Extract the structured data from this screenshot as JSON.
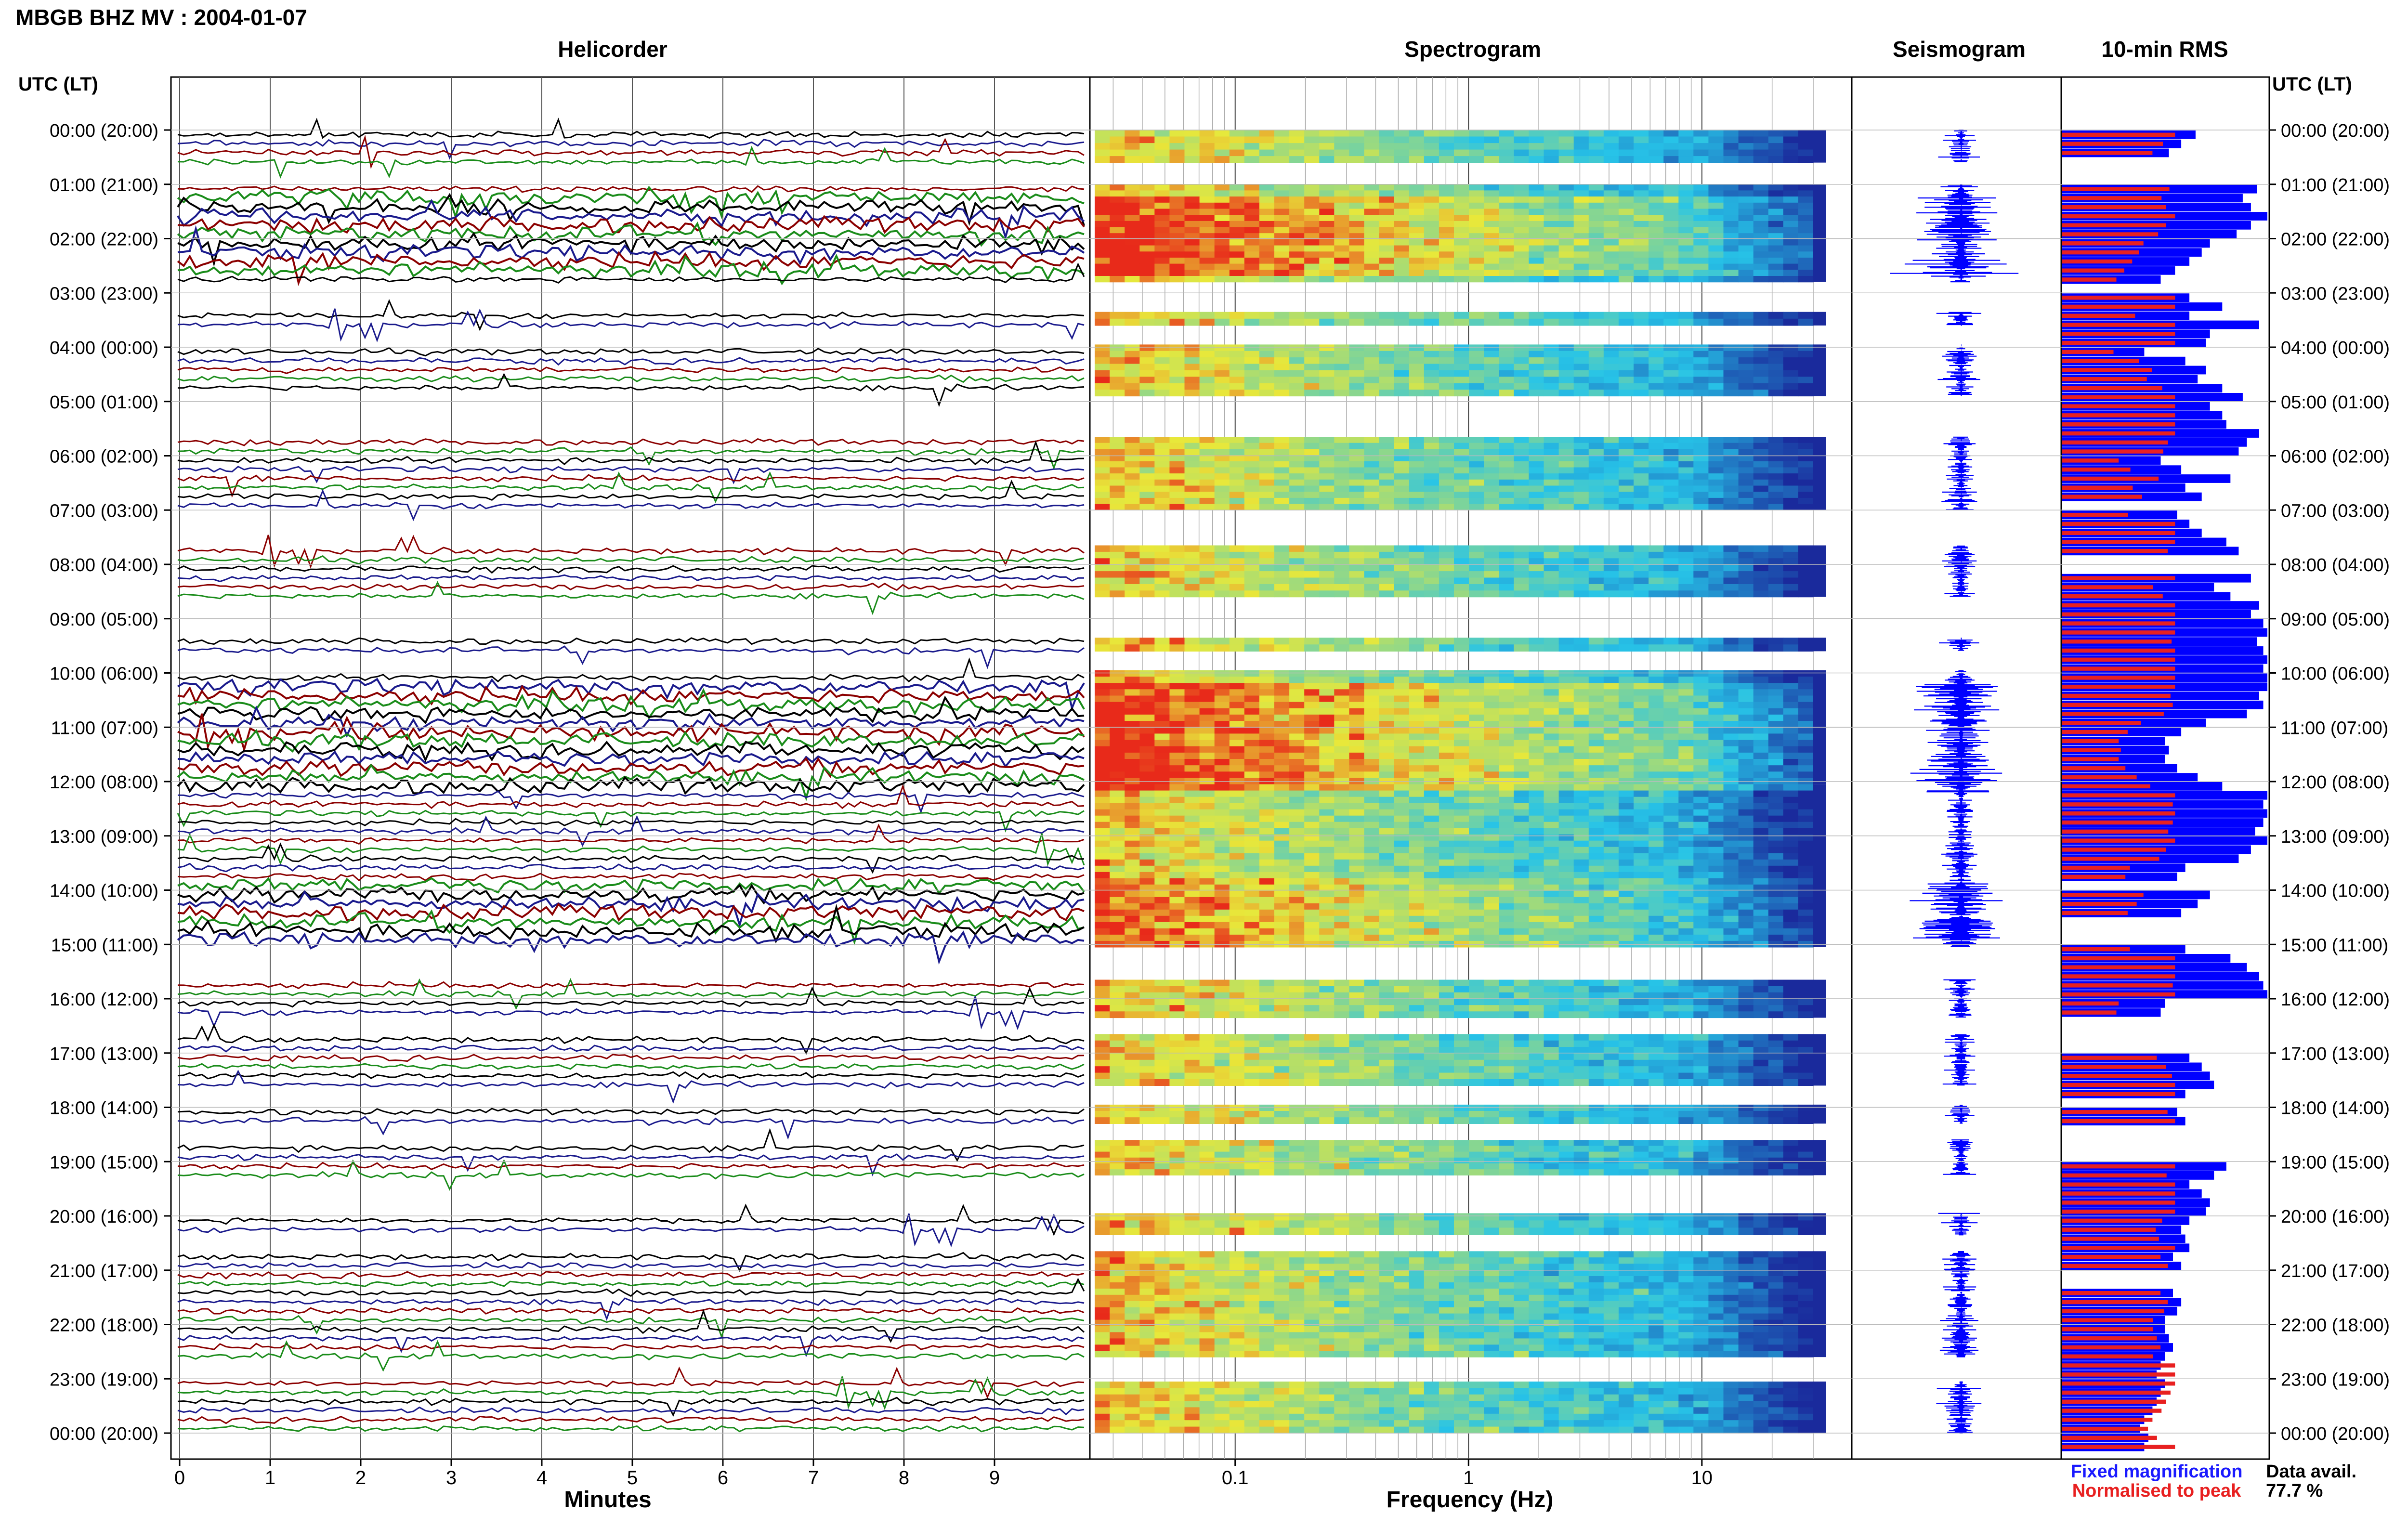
{
  "title": "MBGB BHZ MV : 2004-01-07",
  "colors": {
    "trace_cycle": [
      "#000000",
      "#1a1a8c",
      "#8b0000",
      "#1a8c1a"
    ],
    "spectro_low": "#1a2a9c",
    "spectro_mid": "#27c4e8",
    "spectro_high": "#e8e83a",
    "spectro_peak": "#e82a1a",
    "rms_fixed": "#0000ff",
    "rms_normalised": "#e82020",
    "seismogram": "#0000ff",
    "grid": "#aaaaaa"
  },
  "axis_labels": {
    "utc_left": "UTC (LT)",
    "utc_right": "UTC (LT)"
  },
  "panels": {
    "helicorder": {
      "title": "Helicorder",
      "xlabel": "Minutes",
      "ticks": [
        "0",
        "1",
        "2",
        "3",
        "4",
        "5",
        "6",
        "7",
        "8",
        "9"
      ]
    },
    "spectrogram": {
      "title": "Spectrogram",
      "xlabel": "Frequency (Hz)",
      "ticks": [
        "0.1",
        "1",
        "10"
      ]
    },
    "seismogram": {
      "title": "Seismogram"
    },
    "rms": {
      "title": "10-min RMS"
    }
  },
  "legend": {
    "fixed": "Fixed magnification",
    "normalised": "Normalised to peak",
    "avail_label": "Data avail.",
    "avail_value": "77.7 %"
  },
  "chart_data": {
    "type": "heatmap",
    "time_labels": [
      "00:00 (20:00)",
      "01:00 (21:00)",
      "02:00 (22:00)",
      "03:00 (23:00)",
      "04:00 (00:00)",
      "05:00 (01:00)",
      "06:00 (02:00)",
      "07:00 (03:00)",
      "08:00 (04:00)",
      "09:00 (05:00)",
      "10:00 (06:00)",
      "11:00 (07:00)",
      "12:00 (08:00)",
      "13:00 (09:00)",
      "14:00 (10:00)",
      "15:00 (11:00)",
      "16:00 (12:00)",
      "17:00 (13:00)",
      "18:00 (14:00)",
      "19:00 (15:00)",
      "20:00 (16:00)",
      "21:00 (17:00)",
      "22:00 (18:00)",
      "23:00 (19:00)",
      "00:00 (20:00)"
    ],
    "helicorder_minutes": [
      0,
      10
    ],
    "spectrogram_frequency_hz": [
      0.025,
      30
    ],
    "data_segments_hours": [
      [
        0.0,
        0.6
      ],
      [
        1.0,
        2.8
      ],
      [
        3.35,
        3.6
      ],
      [
        3.95,
        4.9
      ],
      [
        5.65,
        7.0
      ],
      [
        7.65,
        8.6
      ],
      [
        9.35,
        9.6
      ],
      [
        9.95,
        12.05
      ],
      [
        12.05,
        15.05
      ],
      [
        15.65,
        16.35
      ],
      [
        16.65,
        17.6
      ],
      [
        17.95,
        18.3
      ],
      [
        18.6,
        19.25
      ],
      [
        19.95,
        20.35
      ],
      [
        20.65,
        22.6
      ],
      [
        23.05,
        24.0
      ]
    ],
    "rms_fixed": [
      0.65,
      0.58,
      0.52,
      0.0,
      0.0,
      0.0,
      0.95,
      0.88,
      0.92,
      1.0,
      0.92,
      0.85,
      0.72,
      0.68,
      0.62,
      0.55,
      0.48,
      0.0,
      0.62,
      0.78,
      0.62,
      0.96,
      0.72,
      0.7,
      0.4,
      0.6,
      0.7,
      0.66,
      0.78,
      0.88,
      0.72,
      0.78,
      0.8,
      0.96,
      0.9,
      0.86,
      0.48,
      0.58,
      0.82,
      0.6,
      0.68,
      0.0,
      0.56,
      0.62,
      0.68,
      0.8,
      0.86,
      0.0,
      0.0,
      0.92,
      0.74,
      0.82,
      0.96,
      0.92,
      0.98,
      1.0,
      0.95,
      0.98,
      1.0,
      0.98,
      1.0,
      1.0,
      0.96,
      0.98,
      0.9,
      0.7,
      0.58,
      0.5,
      0.52,
      0.5,
      0.56,
      0.66,
      0.78,
      1.0,
      0.98,
      1.0,
      0.98,
      0.94,
      1.0,
      0.92,
      0.86,
      0.6,
      0.56,
      0.0,
      0.72,
      0.66,
      0.58,
      0.0,
      0.0,
      0.0,
      0.6,
      0.82,
      0.9,
      0.96,
      0.98,
      1.0,
      0.5,
      0.48,
      0.0,
      0.0,
      0.0,
      0.0,
      0.62,
      0.68,
      0.72,
      0.74,
      0.6,
      0.0,
      0.56,
      0.6,
      0.0,
      0.0,
      0.0,
      0.0,
      0.8,
      0.74,
      0.62,
      0.68,
      0.72,
      0.7,
      0.62,
      0.58,
      0.6,
      0.62,
      0.54,
      0.58,
      0.0,
      0.0,
      0.54,
      0.58,
      0.56,
      0.5,
      0.5,
      0.52,
      0.54,
      0.5,
      0.48,
      0.46,
      0.5,
      0.48,
      0.46,
      0.44,
      0.4,
      0.38,
      0.42,
      0.4,
      0.0,
      0.0,
      0.0,
      0.0
    ]
  }
}
